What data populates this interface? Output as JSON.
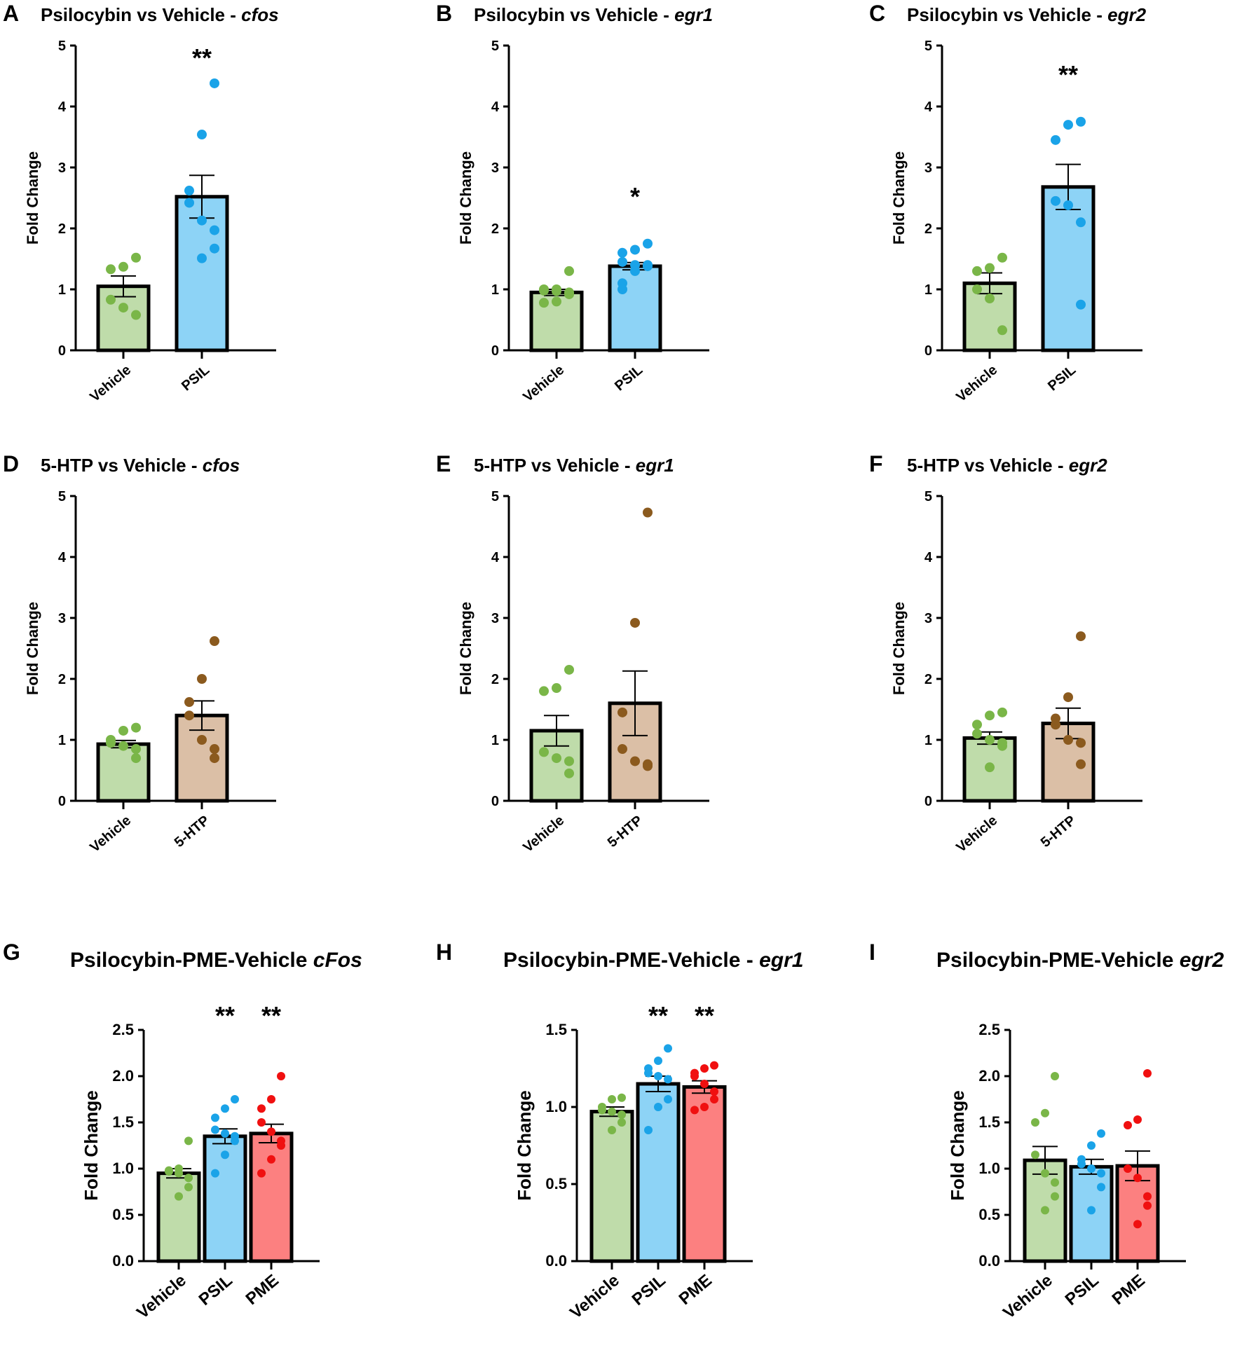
{
  "colors": {
    "Vehicle": {
      "fill": "#bfdcaa",
      "dot": "#7ab648"
    },
    "PSIL": {
      "fill": "#8dd3f6",
      "dot": "#1aa3e8"
    },
    "5-HTP": {
      "fill": "#dbbfa6",
      "dot": "#8b5a1e"
    },
    "PME": {
      "fill": "#fc8080",
      "dot": "#f01010"
    }
  },
  "chart_data": [
    {
      "letter": "A",
      "type": "bar",
      "title": "Psilocybin vs Vehicle - ",
      "gene": "cfos",
      "ylabel": "Fold Change",
      "ylim": [
        0,
        5
      ],
      "yticks": [
        "0",
        "1",
        "2",
        "3",
        "4",
        "5"
      ],
      "categories": [
        "Vehicle",
        "PSIL"
      ],
      "means": [
        1.05,
        2.52
      ],
      "sem": [
        0.17,
        0.35
      ],
      "sig": [
        "",
        "**"
      ],
      "points": [
        [
          1.52,
          1.37,
          1.33,
          0.83,
          0.7,
          0.58
        ],
        [
          4.38,
          3.54,
          2.62,
          2.42,
          2.13,
          1.97,
          1.67,
          1.51
        ]
      ]
    },
    {
      "letter": "B",
      "type": "bar",
      "title": "Psilocybin vs Vehicle - ",
      "gene": "egr1",
      "ylabel": "Fold Change",
      "ylim": [
        0,
        5
      ],
      "yticks": [
        "0",
        "1",
        "2",
        "3",
        "4",
        "5"
      ],
      "categories": [
        "Vehicle",
        "PSIL"
      ],
      "means": [
        0.95,
        1.38
      ],
      "sem": [
        0.05,
        0.06
      ],
      "sig": [
        "",
        "*"
      ],
      "points": [
        [
          1.3,
          1.0,
          1.0,
          0.98,
          0.97,
          0.95,
          0.92,
          0.8,
          0.78
        ],
        [
          1.75,
          1.65,
          1.6,
          1.45,
          1.4,
          1.4,
          1.38,
          1.3,
          1.1,
          1.0
        ]
      ]
    },
    {
      "letter": "C",
      "type": "bar",
      "title": "Psilocybin vs Vehicle - ",
      "gene": "egr2",
      "ylabel": "Fold Change",
      "ylim": [
        0,
        5
      ],
      "yticks": [
        "0",
        "1",
        "2",
        "3",
        "4",
        "5"
      ],
      "categories": [
        "Vehicle",
        "PSIL"
      ],
      "means": [
        1.1,
        2.68
      ],
      "sem": [
        0.17,
        0.37
      ],
      "sig": [
        "",
        "**"
      ],
      "points": [
        [
          1.52,
          1.35,
          1.3,
          1.0,
          0.85,
          0.33
        ],
        [
          3.75,
          3.7,
          3.45,
          2.45,
          2.38,
          2.1,
          0.75
        ]
      ]
    },
    {
      "letter": "D",
      "type": "bar",
      "title": "5-HTP vs Vehicle - ",
      "gene": "cfos",
      "ylabel": "Fold Change",
      "ylim": [
        0,
        5
      ],
      "yticks": [
        "0",
        "1",
        "2",
        "3",
        "4",
        "5"
      ],
      "categories": [
        "Vehicle",
        "5-HTP"
      ],
      "means": [
        0.93,
        1.4
      ],
      "sem": [
        0.06,
        0.24
      ],
      "sig": [
        "",
        ""
      ],
      "points": [
        [
          1.2,
          1.15,
          1.0,
          0.95,
          0.9,
          0.85,
          0.7
        ],
        [
          2.62,
          2.0,
          1.62,
          1.4,
          1.0,
          0.85,
          0.7
        ]
      ]
    },
    {
      "letter": "E",
      "type": "bar",
      "title": "5-HTP vs Vehicle - ",
      "gene": "egr1",
      "ylabel": "Fold Change",
      "ylim": [
        0,
        5
      ],
      "yticks": [
        "0",
        "1",
        "2",
        "3",
        "4",
        "5"
      ],
      "categories": [
        "Vehicle",
        "5-HTP"
      ],
      "means": [
        1.15,
        1.6
      ],
      "sem": [
        0.25,
        0.53
      ],
      "sig": [
        "",
        ""
      ],
      "points": [
        [
          2.15,
          1.85,
          1.8,
          0.8,
          0.7,
          0.65,
          0.45
        ],
        [
          4.73,
          2.92,
          1.45,
          0.85,
          0.65,
          0.6,
          0.57
        ]
      ]
    },
    {
      "letter": "F",
      "type": "bar",
      "title": "5-HTP vs Vehicle - ",
      "gene": "egr2",
      "ylabel": "Fold Change",
      "ylim": [
        0,
        5
      ],
      "yticks": [
        "0",
        "1",
        "2",
        "3",
        "4",
        "5"
      ],
      "categories": [
        "Vehicle",
        "5-HTP"
      ],
      "means": [
        1.03,
        1.27
      ],
      "sem": [
        0.1,
        0.25
      ],
      "sig": [
        "",
        ""
      ],
      "points": [
        [
          1.45,
          1.4,
          1.25,
          1.1,
          1.0,
          0.95,
          0.9,
          0.55
        ],
        [
          2.7,
          1.7,
          1.35,
          1.25,
          1.0,
          0.95,
          0.6
        ]
      ]
    },
    {
      "letter": "G",
      "type": "bar",
      "title": "Psilocybin-PME-Vehicle ",
      "gene": "cFos",
      "ylabel": "Fold Change",
      "ylim": [
        0,
        2.5
      ],
      "yticks": [
        "0.0",
        "0.5",
        "1.0",
        "1.5",
        "2.0",
        "2.5"
      ],
      "categories": [
        "Vehicle",
        "PSIL",
        "PME"
      ],
      "means": [
        0.95,
        1.35,
        1.38
      ],
      "sem": [
        0.05,
        0.08,
        0.1
      ],
      "sig": [
        "",
        "**",
        "**"
      ],
      "points": [
        [
          1.3,
          1.0,
          0.98,
          0.97,
          0.95,
          0.9,
          0.8,
          0.7
        ],
        [
          1.75,
          1.65,
          1.55,
          1.42,
          1.38,
          1.35,
          1.3,
          1.15,
          0.95
        ],
        [
          2.0,
          1.75,
          1.65,
          1.5,
          1.4,
          1.3,
          1.25,
          1.1,
          0.95
        ]
      ]
    },
    {
      "letter": "H",
      "type": "bar",
      "title": "Psilocybin-PME-Vehicle - ",
      "gene": "egr1",
      "ylabel": "Fold Change",
      "ylim": [
        0,
        1.5
      ],
      "yticks": [
        "0.0",
        "0.5",
        "1.0",
        "1.5"
      ],
      "categories": [
        "Vehicle",
        "PSIL",
        "PME"
      ],
      "means": [
        0.97,
        1.15,
        1.13
      ],
      "sem": [
        0.03,
        0.05,
        0.04
      ],
      "sig": [
        "",
        "**",
        "**"
      ],
      "points": [
        [
          1.06,
          1.05,
          1.0,
          0.98,
          0.97,
          0.95,
          0.9,
          0.85
        ],
        [
          1.38,
          1.3,
          1.25,
          1.22,
          1.2,
          1.18,
          1.05,
          1.0,
          0.85
        ],
        [
          1.27,
          1.25,
          1.22,
          1.2,
          1.15,
          1.1,
          1.05,
          1.0,
          0.98
        ]
      ]
    },
    {
      "letter": "I",
      "type": "bar",
      "title": "Psilocybin-PME-Vehicle ",
      "gene": "egr2",
      "ylabel": "Fold Change",
      "ylim": [
        0,
        2.5
      ],
      "yticks": [
        "0.0",
        "0.5",
        "1.0",
        "1.5",
        "2.0",
        "2.5"
      ],
      "categories": [
        "Vehicle",
        "PSIL",
        "PME"
      ],
      "means": [
        1.09,
        1.02,
        1.03
      ],
      "sem": [
        0.15,
        0.08,
        0.16
      ],
      "sig": [
        "",
        "",
        ""
      ],
      "points": [
        [
          2.0,
          1.6,
          1.5,
          1.15,
          0.95,
          0.85,
          0.7,
          0.55
        ],
        [
          1.38,
          1.25,
          1.1,
          1.05,
          1.0,
          0.95,
          0.8,
          0.55
        ],
        [
          2.03,
          1.53,
          1.47,
          1.0,
          0.9,
          0.7,
          0.6,
          0.4
        ]
      ]
    }
  ]
}
